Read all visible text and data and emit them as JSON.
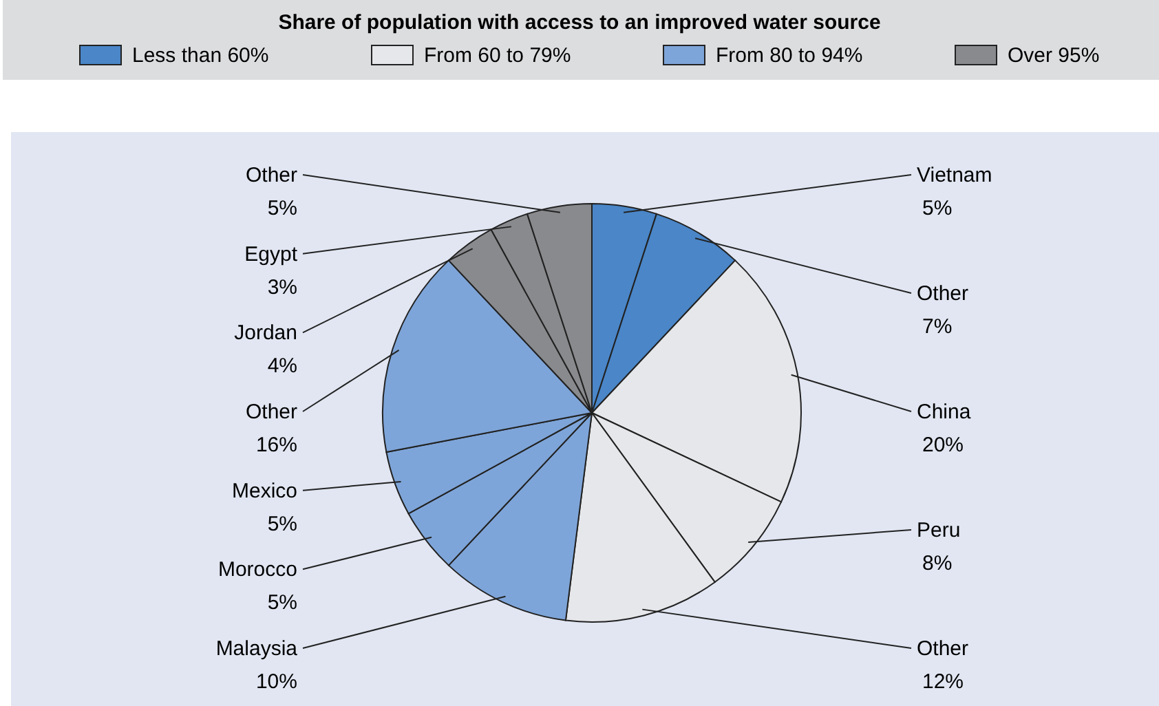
{
  "chart_data": {
    "type": "pie",
    "legend_title": "Share of population with access to an improved water source",
    "categories": [
      "Vietnam",
      "Other",
      "China",
      "Peru",
      "Other",
      "Malaysia",
      "Morocco",
      "Mexico",
      "Other",
      "Jordan",
      "Egypt",
      "Other"
    ],
    "values": [
      5,
      7,
      20,
      8,
      12,
      10,
      5,
      5,
      16,
      4,
      3,
      5
    ],
    "colors": [
      "#4a86c8",
      "#4a86c8",
      "#e6e7ea",
      "#e6e7ea",
      "#e6e7ea",
      "#7ea5d9",
      "#7ea5d9",
      "#7ea5d9",
      "#7ea5d9",
      "#898a8d",
      "#898a8d",
      "#898a8d"
    ],
    "value_labels": [
      "5%",
      "7%",
      "20%",
      "8%",
      "12%",
      "10%",
      "5%",
      "5%",
      "16%",
      "4%",
      "3%",
      "5%"
    ],
    "annotations": [
      "Less than 60%",
      "From 60 to 79%",
      "From 80 to 94%",
      "Over 95%"
    ]
  }
}
